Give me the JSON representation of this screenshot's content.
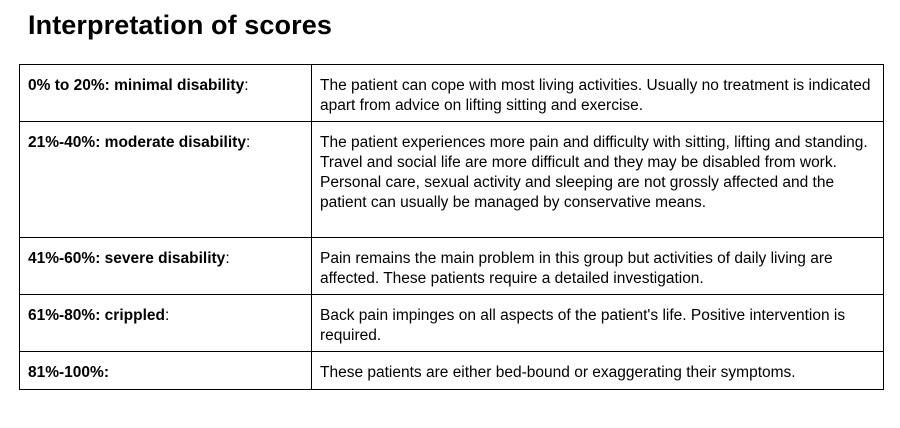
{
  "title": "Interpretation of scores",
  "rows": [
    {
      "range": "0% to 20%: minimal disability",
      "suffix": ":",
      "description": "The patient can cope with most living activities. Usually no treatment is indicated apart from advice on lifting sitting and exercise."
    },
    {
      "range": "21%-40%: moderate disability",
      "suffix": ":",
      "description": "The patient experiences more pain and difficulty with sitting, lifting and standing. Travel and social life are more difficult and they may be disabled from work. Personal care, sexual activity and sleeping are not grossly affected and the patient can usually be managed by conservative means."
    },
    {
      "range": "41%-60%: severe disability",
      "suffix": ":",
      "description": "Pain remains the main problem in this group but activities of daily living are affected. These patients require a detailed investigation."
    },
    {
      "range": "61%-80%: crippled",
      "suffix": ":",
      "description": "Back pain impinges on all aspects of the patient's life. Positive intervention is required."
    },
    {
      "range": "81%-100%:",
      "suffix": "",
      "description": "These patients are either bed-bound or exaggerating their symptoms."
    }
  ]
}
